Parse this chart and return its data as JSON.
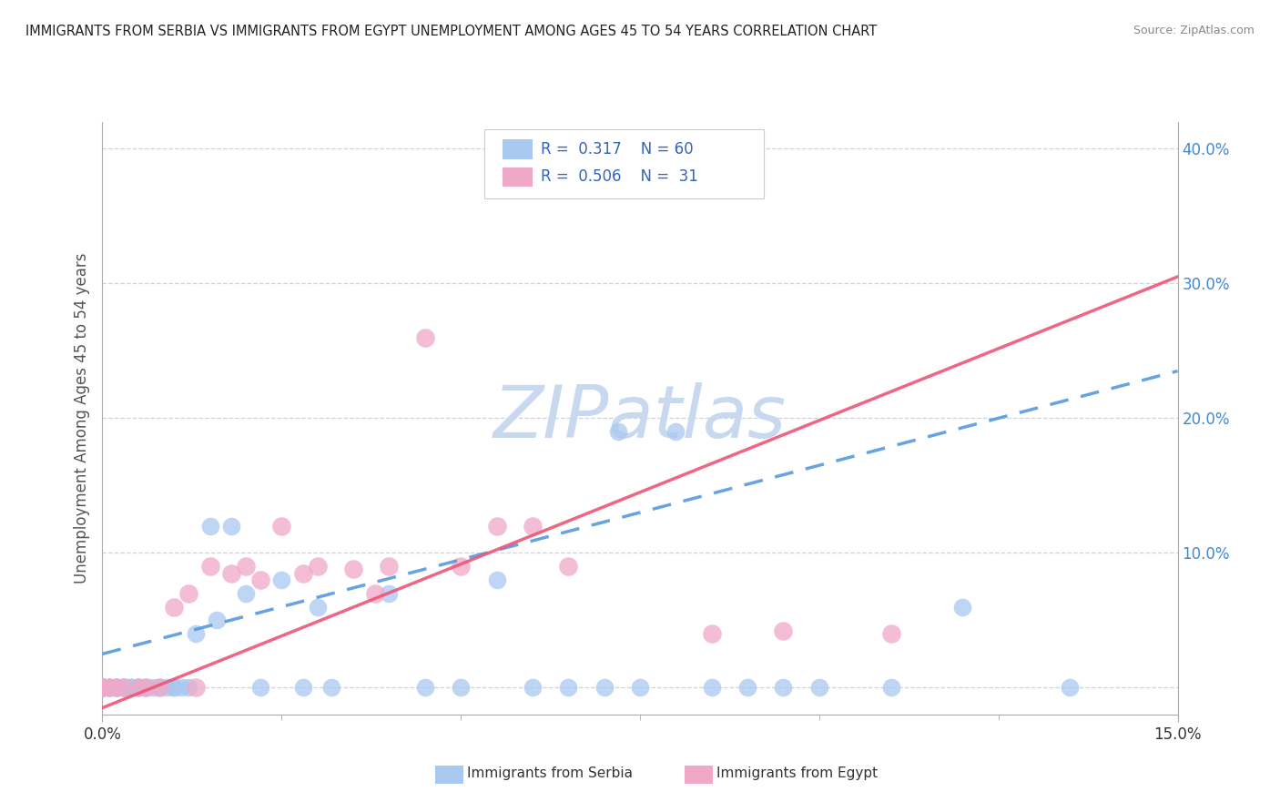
{
  "title": "IMMIGRANTS FROM SERBIA VS IMMIGRANTS FROM EGYPT UNEMPLOYMENT AMONG AGES 45 TO 54 YEARS CORRELATION CHART",
  "source": "Source: ZipAtlas.com",
  "ylabel": "Unemployment Among Ages 45 to 54 years",
  "xlim": [
    0.0,
    0.15
  ],
  "ylim": [
    -0.02,
    0.42
  ],
  "y_ticks": [
    0.0,
    0.1,
    0.2,
    0.3,
    0.4
  ],
  "y_tick_labels": [
    "",
    "10.0%",
    "20.0%",
    "30.0%",
    "40.0%"
  ],
  "serbia_R": 0.317,
  "serbia_N": 60,
  "egypt_R": 0.506,
  "egypt_N": 31,
  "serbia_color": "#a8c8f0",
  "egypt_color": "#f0a8c8",
  "serbia_line_color": "#5599dd",
  "egypt_line_color": "#ee5577",
  "serbia_line_dash": true,
  "watermark": "ZIPatlas",
  "watermark_color": "#c8d8ee",
  "legend_serbia_label": "Immigrants from Serbia",
  "legend_egypt_label": "Immigrants from Egypt",
  "serbia_line_x0": 0.0,
  "serbia_line_y0": 0.025,
  "serbia_line_x1": 0.15,
  "serbia_line_y1": 0.235,
  "egypt_line_x0": 0.0,
  "egypt_line_y0": -0.015,
  "egypt_line_x1": 0.15,
  "egypt_line_y1": 0.305,
  "serbia_scatter_x": [
    0.0,
    0.0,
    0.0,
    0.0,
    0.001,
    0.001,
    0.001,
    0.001,
    0.001,
    0.002,
    0.002,
    0.002,
    0.002,
    0.002,
    0.003,
    0.003,
    0.003,
    0.003,
    0.004,
    0.004,
    0.004,
    0.005,
    0.005,
    0.005,
    0.006,
    0.006,
    0.007,
    0.008,
    0.009,
    0.01,
    0.01,
    0.011,
    0.012,
    0.013,
    0.015,
    0.016,
    0.018,
    0.02,
    0.022,
    0.025,
    0.028,
    0.03,
    0.032,
    0.04,
    0.045,
    0.05,
    0.055,
    0.06,
    0.065,
    0.07,
    0.072,
    0.075,
    0.08,
    0.085,
    0.09,
    0.095,
    0.1,
    0.11,
    0.12,
    0.135
  ],
  "serbia_scatter_y": [
    0.0,
    0.0,
    0.0,
    0.0,
    0.0,
    0.0,
    0.0,
    0.0,
    0.0,
    0.0,
    0.0,
    0.0,
    0.0,
    0.0,
    0.0,
    0.0,
    0.0,
    0.0,
    0.0,
    0.0,
    0.0,
    0.0,
    0.0,
    0.0,
    0.0,
    0.0,
    0.0,
    0.0,
    0.0,
    0.0,
    0.0,
    0.0,
    0.0,
    0.04,
    0.12,
    0.05,
    0.12,
    0.07,
    0.0,
    0.08,
    0.0,
    0.06,
    0.0,
    0.07,
    0.0,
    0.0,
    0.08,
    0.0,
    0.0,
    0.0,
    0.19,
    0.0,
    0.19,
    0.0,
    0.0,
    0.0,
    0.0,
    0.0,
    0.06,
    0.0
  ],
  "egypt_scatter_x": [
    0.0,
    0.0,
    0.0,
    0.0,
    0.001,
    0.002,
    0.003,
    0.005,
    0.006,
    0.008,
    0.01,
    0.012,
    0.013,
    0.015,
    0.018,
    0.02,
    0.022,
    0.025,
    0.028,
    0.03,
    0.035,
    0.038,
    0.04,
    0.045,
    0.05,
    0.055,
    0.06,
    0.065,
    0.085,
    0.095,
    0.11
  ],
  "egypt_scatter_y": [
    0.0,
    0.0,
    0.0,
    0.0,
    0.0,
    0.0,
    0.0,
    0.0,
    0.0,
    0.0,
    0.06,
    0.07,
    0.0,
    0.09,
    0.085,
    0.09,
    0.08,
    0.12,
    0.085,
    0.09,
    0.088,
    0.07,
    0.09,
    0.26,
    0.09,
    0.12,
    0.12,
    0.09,
    0.04,
    0.042,
    0.04
  ]
}
